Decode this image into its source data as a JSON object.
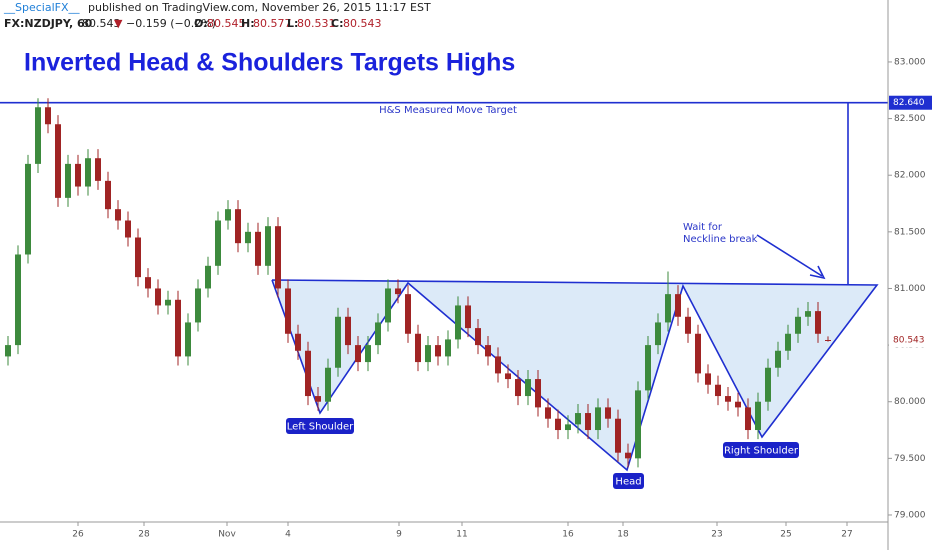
{
  "header": {
    "author": "__SpecialFX__",
    "published": "published on TradingView.com, November 26, 2015 11:17 EST",
    "symbol": "FX:NZDJPY, 60",
    "last": "80.543",
    "arrow": "▼",
    "change": "−0.159 (−0.2%)",
    "o_label": "O:",
    "o": "80.545",
    "h_label": "H:",
    "h": "80.577",
    "l_label": "L:",
    "l": "80.531",
    "c_label": "C:",
    "c": "80.543"
  },
  "chart_data": {
    "type": "candlestick",
    "title": "Inverted Head & Shoulders Targets Highs",
    "annotations": {
      "target_text": "H&S Measured Move Target",
      "wait_1": "Wait for",
      "wait_2": "Neckline break",
      "left_shoulder": "Left Shoulder",
      "head": "Head",
      "right_shoulder": "Right Shoulder"
    },
    "target": {
      "value": 82.64,
      "label": "82.640"
    },
    "last_price": {
      "value": 80.543,
      "label": "80.543"
    },
    "up_color": "#3d8a3d",
    "down_color": "#a02424",
    "pattern_color": "#1f2fd0",
    "pattern_fill": "#dceaf8",
    "grid": false,
    "xlim": [
      -0.8,
      88
    ],
    "xticks": [
      {
        "value": 7,
        "label": "26"
      },
      {
        "value": 13.6,
        "label": "28"
      },
      {
        "value": 21.9,
        "label": "Nov"
      },
      {
        "value": 28,
        "label": "4"
      },
      {
        "value": 39.1,
        "label": "9"
      },
      {
        "value": 45.4,
        "label": "11"
      },
      {
        "value": 56,
        "label": "16"
      },
      {
        "value": 61.5,
        "label": "18"
      },
      {
        "value": 70.9,
        "label": "23"
      },
      {
        "value": 77.8,
        "label": "25"
      },
      {
        "value": 83.9,
        "label": "27"
      }
    ],
    "ylim": [
      78.938,
      83.547
    ],
    "yticks": [
      {
        "value": 79,
        "label": "79.000"
      },
      {
        "value": 79.5,
        "label": "79.500"
      },
      {
        "value": 80,
        "label": "80.000"
      },
      {
        "value": 80.5,
        "label": "80.500"
      },
      {
        "value": 81,
        "label": "81.000"
      },
      {
        "value": 81.5,
        "label": "81.500"
      },
      {
        "value": 82,
        "label": "82.000"
      },
      {
        "value": 82.5,
        "label": "82.500"
      },
      {
        "value": 83,
        "label": "83.000"
      }
    ],
    "open": [
      80.4,
      80.5,
      81.3,
      82.1,
      82.6,
      82.45,
      81.8,
      82.1,
      81.9,
      82.15,
      81.95,
      81.7,
      81.6,
      81.45,
      81.1,
      81.0,
      80.85,
      80.9,
      80.4,
      80.7,
      81.0,
      81.2,
      81.6,
      81.7,
      81.4,
      81.5,
      81.2,
      81.55,
      81.0,
      80.6,
      80.45,
      80.05,
      80.0,
      80.3,
      80.75,
      80.5,
      80.35,
      80.5,
      80.7,
      81.0,
      80.95,
      80.6,
      80.35,
      80.5,
      80.4,
      80.55,
      80.85,
      80.65,
      80.5,
      80.4,
      80.25,
      80.2,
      80.05,
      80.2,
      79.95,
      79.85,
      79.75,
      79.8,
      79.9,
      79.75,
      79.95,
      79.85,
      79.55,
      79.5,
      80.1,
      80.5,
      80.7,
      80.95,
      80.75,
      80.6,
      80.25,
      80.15,
      80.05,
      80.0,
      79.95,
      79.75,
      80.0,
      80.3,
      80.45,
      80.6,
      80.75,
      80.8,
      80.545
    ],
    "high": [
      80.58,
      81.38,
      82.18,
      82.68,
      82.68,
      82.53,
      82.18,
      82.18,
      82.23,
      82.23,
      82.03,
      81.78,
      81.68,
      81.53,
      81.18,
      81.08,
      80.98,
      80.98,
      80.78,
      81.08,
      81.28,
      81.68,
      81.78,
      81.78,
      81.58,
      81.58,
      81.63,
      81.63,
      81.08,
      80.68,
      80.53,
      80.13,
      80.38,
      80.83,
      80.83,
      80.58,
      80.58,
      80.78,
      81.08,
      81.08,
      81.03,
      80.68,
      80.58,
      80.58,
      80.63,
      80.93,
      80.93,
      80.73,
      80.58,
      80.48,
      80.33,
      80.28,
      80.28,
      80.28,
      80.03,
      79.93,
      79.88,
      79.98,
      79.98,
      80.03,
      80.03,
      79.93,
      79.63,
      80.18,
      80.58,
      80.78,
      81.15,
      81.03,
      80.83,
      80.68,
      80.33,
      80.23,
      80.13,
      80.08,
      80.03,
      80.08,
      80.38,
      80.53,
      80.68,
      80.83,
      80.88,
      80.88,
      80.577
    ],
    "low": [
      80.32,
      80.42,
      81.22,
      82.02,
      82.37,
      81.72,
      81.72,
      81.82,
      81.82,
      81.87,
      81.62,
      81.52,
      81.37,
      81.02,
      80.92,
      80.77,
      80.77,
      80.32,
      80.32,
      80.62,
      80.92,
      81.12,
      81.52,
      81.32,
      81.32,
      81.12,
      81.12,
      80.92,
      80.52,
      80.37,
      79.97,
      79.92,
      79.92,
      80.22,
      80.42,
      80.27,
      80.27,
      80.42,
      80.62,
      80.87,
      80.52,
      80.27,
      80.27,
      80.32,
      80.32,
      80.47,
      80.57,
      80.42,
      80.32,
      80.17,
      80.12,
      79.97,
      79.97,
      79.87,
      79.77,
      79.67,
      79.67,
      79.72,
      79.67,
      79.67,
      79.77,
      79.47,
      79.42,
      79.42,
      80.02,
      80.42,
      80.62,
      80.67,
      80.52,
      80.17,
      80.07,
      79.97,
      79.92,
      79.87,
      79.67,
      79.67,
      79.92,
      80.22,
      80.37,
      80.52,
      80.67,
      80.52,
      80.531
    ],
    "close": [
      80.5,
      81.3,
      82.1,
      82.6,
      82.45,
      81.8,
      82.1,
      81.9,
      82.15,
      81.95,
      81.7,
      81.6,
      81.45,
      81.1,
      81.0,
      80.85,
      80.9,
      80.4,
      80.7,
      81.0,
      81.2,
      81.6,
      81.7,
      81.4,
      81.5,
      81.2,
      81.55,
      81.0,
      80.6,
      80.45,
      80.05,
      80.0,
      80.3,
      80.75,
      80.5,
      80.35,
      80.5,
      80.7,
      81.0,
      80.95,
      80.6,
      80.35,
      80.5,
      80.4,
      80.55,
      80.85,
      80.65,
      80.5,
      80.4,
      80.25,
      80.2,
      80.05,
      80.2,
      79.95,
      79.85,
      79.75,
      79.8,
      79.9,
      79.75,
      79.95,
      79.85,
      79.55,
      79.5,
      80.1,
      80.5,
      80.7,
      80.95,
      80.75,
      80.6,
      80.25,
      80.15,
      80.05,
      80.0,
      79.95,
      79.75,
      80.0,
      80.3,
      80.45,
      80.6,
      80.75,
      80.8,
      80.6,
      80.543
    ]
  }
}
